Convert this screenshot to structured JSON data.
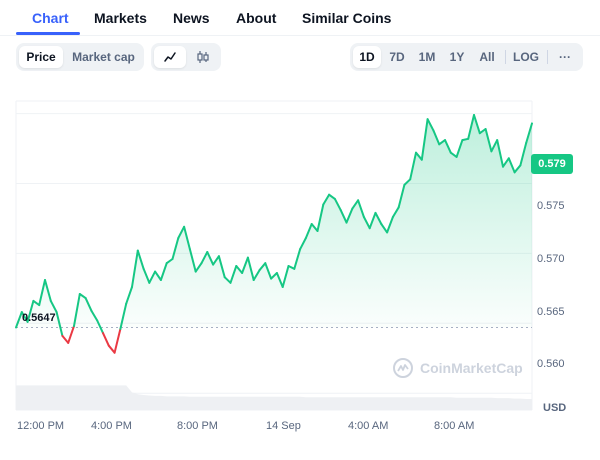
{
  "tabs": [
    {
      "label": "Chart",
      "active": true
    },
    {
      "label": "Markets"
    },
    {
      "label": "News"
    },
    {
      "label": "About"
    },
    {
      "label": "Similar Coins"
    }
  ],
  "toolbar": {
    "metric_toggle": [
      {
        "label": "Price",
        "active": true
      },
      {
        "label": "Market cap"
      }
    ],
    "chart_style_icons": [
      "line-chart-icon",
      "candlestick-icon"
    ],
    "ranges": [
      {
        "label": "1D",
        "active": true
      },
      {
        "label": "7D"
      },
      {
        "label": "1M"
      },
      {
        "label": "1Y"
      },
      {
        "label": "All"
      }
    ],
    "log_label": "LOG",
    "more_label": "···"
  },
  "chart_data": {
    "type": "line",
    "currency": "USD",
    "current_price_label": "0.579",
    "open_price_label": "0.5647",
    "open_price": 0.5647,
    "up_color": "#16c784",
    "down_color": "#ea3943",
    "y_ticks": [
      "0.575",
      "0.570",
      "0.565",
      "0.560"
    ],
    "x_ticks": [
      "12:00 PM",
      "4:00 PM",
      "8:00 PM",
      "14 Sep",
      "4:00 AM",
      "8:00 AM"
    ],
    "watermark": "CoinMarketCap",
    "y_range": [
      0.5588,
      0.5809
    ],
    "price_series": [
      0.5647,
      0.5658,
      0.5651,
      0.5666,
      0.5663,
      0.5681,
      0.5666,
      0.5658,
      0.5641,
      0.5636,
      0.5648,
      0.5671,
      0.5668,
      0.5659,
      0.5652,
      0.5643,
      0.5634,
      0.5629,
      0.5646,
      0.5664,
      0.5676,
      0.5702,
      0.5689,
      0.5679,
      0.5687,
      0.5681,
      0.5693,
      0.5696,
      0.5711,
      0.5719,
      0.5703,
      0.5687,
      0.5693,
      0.5701,
      0.5692,
      0.5698,
      0.5683,
      0.5679,
      0.5691,
      0.5686,
      0.5697,
      0.5681,
      0.5688,
      0.5693,
      0.5682,
      0.5686,
      0.5676,
      0.5691,
      0.5689,
      0.5703,
      0.5711,
      0.5721,
      0.5716,
      0.5735,
      0.5742,
      0.5739,
      0.5731,
      0.5722,
      0.5732,
      0.5738,
      0.5726,
      0.5718,
      0.5729,
      0.5721,
      0.5715,
      0.5726,
      0.5733,
      0.5749,
      0.5753,
      0.5772,
      0.5767,
      0.5796,
      0.5788,
      0.5778,
      0.5781,
      0.5772,
      0.5769,
      0.5781,
      0.5782,
      0.5799,
      0.5786,
      0.5789,
      0.5773,
      0.5781,
      0.5762,
      0.5768,
      0.5758,
      0.5763,
      0.5779,
      0.5793
    ],
    "volume_series": [
      0.56,
      0.56,
      0.56,
      0.56,
      0.56,
      0.56,
      0.56,
      0.56,
      0.56,
      0.56,
      0.56,
      0.56,
      0.56,
      0.56,
      0.56,
      0.56,
      0.56,
      0.56,
      0.56,
      0.56,
      0.4,
      0.36,
      0.34,
      0.33,
      0.32,
      0.32,
      0.31,
      0.31,
      0.31,
      0.31,
      0.3,
      0.3,
      0.3,
      0.3,
      0.3,
      0.3,
      0.3,
      0.3,
      0.3,
      0.3,
      0.3,
      0.3,
      0.3,
      0.3,
      0.3,
      0.3,
      0.3,
      0.3,
      0.3,
      0.3,
      0.29,
      0.29,
      0.29,
      0.29,
      0.29,
      0.29,
      0.29,
      0.29,
      0.29,
      0.29,
      0.29,
      0.29,
      0.29,
      0.29,
      0.29,
      0.29,
      0.29,
      0.29,
      0.29,
      0.29,
      0.29,
      0.29,
      0.29,
      0.29,
      0.29,
      0.29,
      0.28,
      0.28,
      0.28,
      0.28,
      0.28,
      0.28,
      0.28,
      0.27,
      0.27,
      0.27,
      0.26,
      0.26,
      0.25,
      0.25
    ]
  }
}
